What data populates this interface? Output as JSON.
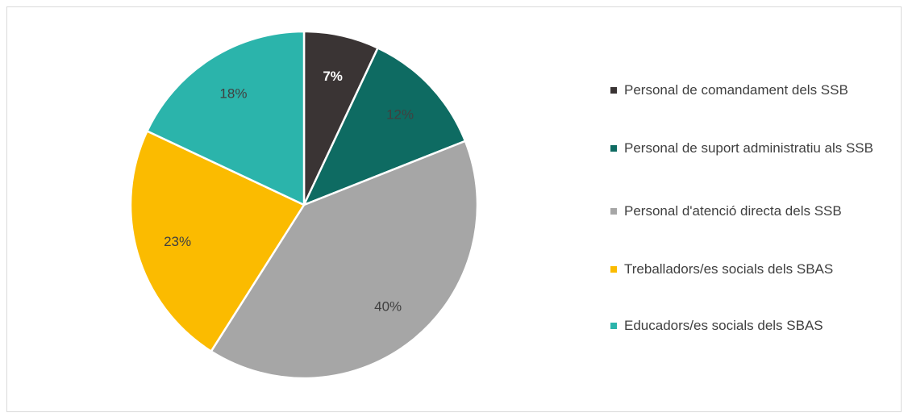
{
  "chart_data": {
    "type": "pie",
    "title": "",
    "slices": [
      {
        "label": "Personal de comandament dels SSB",
        "value": 7,
        "display": "7%",
        "color": "#3a3434",
        "label_color": "#ffffff",
        "label_bold": true
      },
      {
        "label": "Personal de suport administratiu als SSB",
        "value": 12,
        "display": "12%",
        "color": "#0e6b62",
        "label_color": "#404040",
        "label_bold": false
      },
      {
        "label": "Personal d'atenció directa dels SSB",
        "value": 40,
        "display": "40%",
        "color": "#a6a6a6",
        "label_color": "#404040",
        "label_bold": false
      },
      {
        "label": "Treballadors/es socials dels SBAS",
        "value": 23,
        "display": "23%",
        "color": "#fbbb00",
        "label_color": "#404040",
        "label_bold": false
      },
      {
        "label": "Educadors/es socials dels SBAS",
        "value": 18,
        "display": "18%",
        "color": "#2bb4ab",
        "label_color": "#404040",
        "label_bold": false
      }
    ],
    "legend_position": "right"
  }
}
